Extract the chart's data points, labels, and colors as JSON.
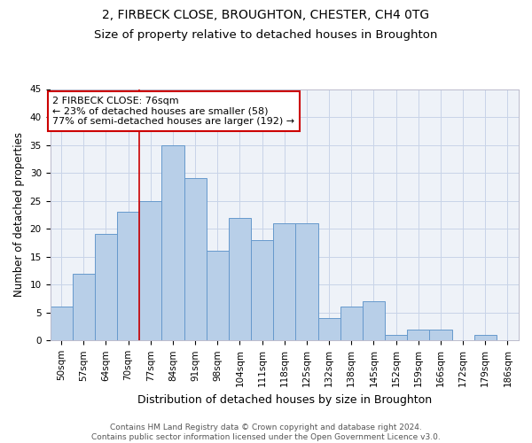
{
  "title": "2, FIRBECK CLOSE, BROUGHTON, CHESTER, CH4 0TG",
  "subtitle": "Size of property relative to detached houses in Broughton",
  "xlabel": "Distribution of detached houses by size in Broughton",
  "ylabel": "Number of detached properties",
  "bins": [
    "50sqm",
    "57sqm",
    "64sqm",
    "70sqm",
    "77sqm",
    "84sqm",
    "91sqm",
    "98sqm",
    "104sqm",
    "111sqm",
    "118sqm",
    "125sqm",
    "132sqm",
    "138sqm",
    "145sqm",
    "152sqm",
    "159sqm",
    "166sqm",
    "172sqm",
    "179sqm",
    "186sqm"
  ],
  "values": [
    6,
    12,
    19,
    23,
    25,
    35,
    29,
    16,
    22,
    18,
    21,
    21,
    4,
    6,
    7,
    1,
    2,
    2,
    0,
    1,
    0
  ],
  "bar_color": "#b8cfe8",
  "bar_edge_color": "#6699cc",
  "property_line_bin_index": 4,
  "property_line_color": "#cc0000",
  "annotation_text": "2 FIRBECK CLOSE: 76sqm\n← 23% of detached houses are smaller (58)\n77% of semi-detached houses are larger (192) →",
  "annotation_box_color": "#cc0000",
  "ylim": [
    0,
    45
  ],
  "yticks": [
    0,
    5,
    10,
    15,
    20,
    25,
    30,
    35,
    40,
    45
  ],
  "grid_color": "#c8d4e8",
  "background_color": "#eef2f8",
  "footer": "Contains HM Land Registry data © Crown copyright and database right 2024.\nContains public sector information licensed under the Open Government Licence v3.0.",
  "title_fontsize": 10,
  "subtitle_fontsize": 9.5,
  "xlabel_fontsize": 9,
  "ylabel_fontsize": 8.5,
  "tick_fontsize": 7.5,
  "annotation_fontsize": 8,
  "footer_fontsize": 6.5
}
